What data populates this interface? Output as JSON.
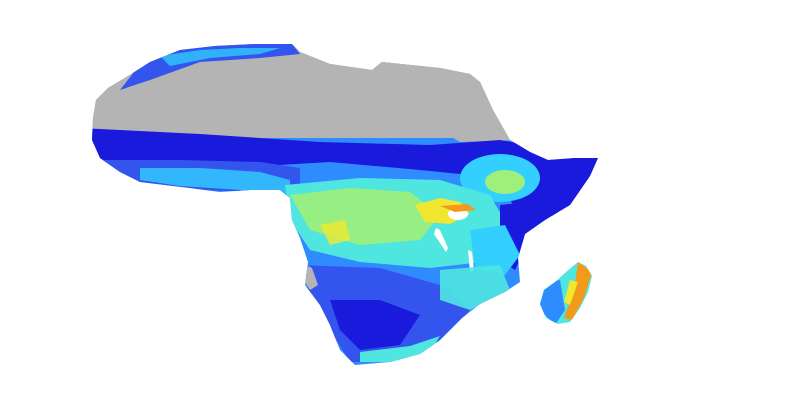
{
  "map": {
    "region": "Africa",
    "background_color": "#ffffff",
    "no_data_color": "#b4b4b4",
    "palette": {
      "deep_blue": "#1a1adc",
      "blue": "#3355ee",
      "light_blue": "#2f8cff",
      "cyan": "#33d0ff",
      "aqua": "#4fe6e0",
      "light_green": "#9ef07a",
      "yellow": "#f0e830",
      "orange": "#f39a1a",
      "water": "#ffffff"
    }
  }
}
